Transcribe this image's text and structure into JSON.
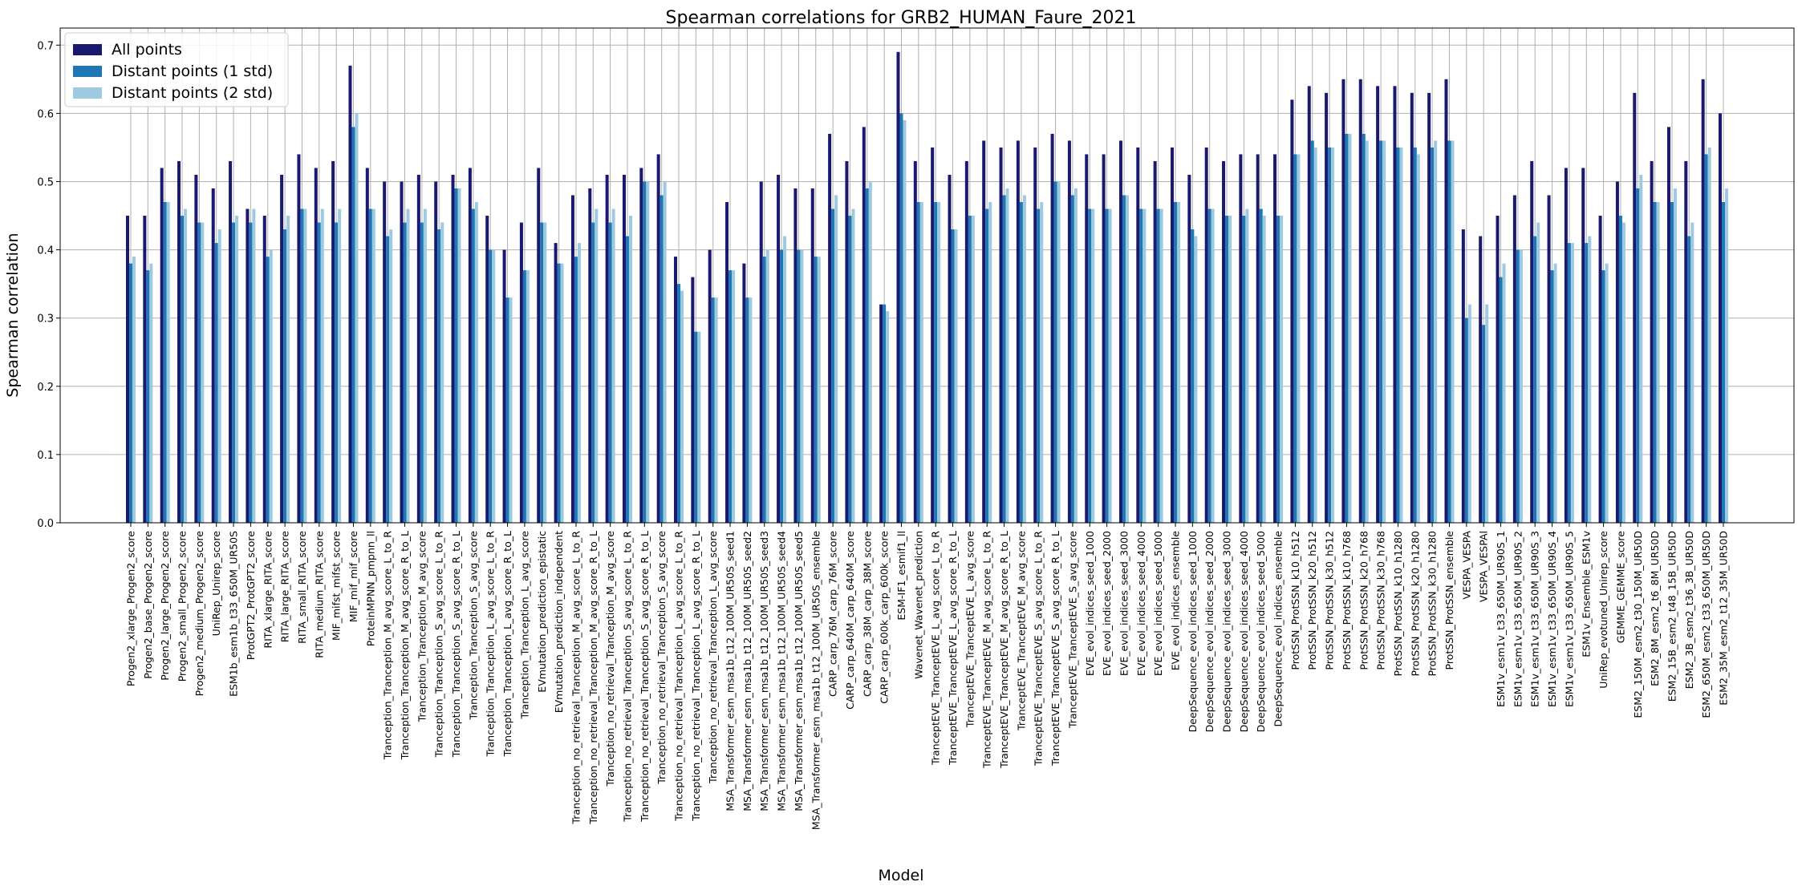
{
  "chart_data": {
    "type": "bar",
    "title": "Spearman correlations for GRB2_HUMAN_Faure_2021",
    "xlabel": "Model",
    "ylabel": "Spearman correlation",
    "ylim": [
      0,
      0.725
    ],
    "yticks": [
      "0.0",
      "0.1",
      "0.2",
      "0.3",
      "0.4",
      "0.5",
      "0.6",
      "0.7"
    ],
    "grid": true,
    "legend_position": "top-left",
    "categories": [
      "Progen2_xlarge_Progen2_score",
      "Progen2_base_Progen2_score",
      "Progen2_large_Progen2_score",
      "Progen2_small_Progen2_score",
      "Progen2_medium_Progen2_score",
      "UniRep_Unirep_score",
      "ESM1b_esm1b_t33_650M_UR50S",
      "ProtGPT2_ProtGPT2_score",
      "RITA_xlarge_RITA_score",
      "RITA_large_RITA_score",
      "RITA_small_RITA_score",
      "RITA_medium_RITA_score",
      "MIF_mifst_mifst_score",
      "MIF_mif_mif_score",
      "ProteinMPNN_pmpnn_ll",
      "Tranception_Tranception_M_avg_score_L_to_R",
      "Tranception_Tranception_M_avg_score_R_to_L",
      "Tranception_Tranception_M_avg_score",
      "Tranception_Tranception_S_avg_score_L_to_R",
      "Tranception_Tranception_S_avg_score_R_to_L",
      "Tranception_Tranception_S_avg_score",
      "Tranception_Tranception_L_avg_score_L_to_R",
      "Tranception_Tranception_L_avg_score_R_to_L",
      "Tranception_Tranception_L_avg_score",
      "EVmutation_prediction_epistatic",
      "EVmutation_prediction_independent",
      "Tranception_no_retrieval_Tranception_M_avg_score_L_to_R",
      "Tranception_no_retrieval_Tranception_M_avg_score_R_to_L",
      "Tranception_no_retrieval_Tranception_M_avg_score",
      "Tranception_no_retrieval_Tranception_S_avg_score_L_to_R",
      "Tranception_no_retrieval_Tranception_S_avg_score_R_to_L",
      "Tranception_no_retrieval_Tranception_S_avg_score",
      "Tranception_no_retrieval_Tranception_L_avg_score_L_to_R",
      "Tranception_no_retrieval_Tranception_L_avg_score_R_to_L",
      "Tranception_no_retrieval_Tranception_L_avg_score",
      "MSA_Transformer_esm_msa1b_t12_100M_UR50S_seed1",
      "MSA_Transformer_esm_msa1b_t12_100M_UR50S_seed2",
      "MSA_Transformer_esm_msa1b_t12_100M_UR50S_seed3",
      "MSA_Transformer_esm_msa1b_t12_100M_UR50S_seed4",
      "MSA_Transformer_esm_msa1b_t12_100M_UR50S_seed5",
      "MSA_Transformer_esm_msa1b_t12_100M_UR50S_ensemble",
      "CARP_carp_76M_carp_76M_score",
      "CARP_carp_640M_carp_640M_score",
      "CARP_carp_38M_carp_38M_score",
      "CARP_carp_600k_carp_600k_score",
      "ESM-IF1_esmif1_ll",
      "Wavenet_Wavenet_prediction",
      "TranceptEVE_TranceptEVE_L_avg_score_L_to_R",
      "TranceptEVE_TranceptEVE_L_avg_score_R_to_L",
      "TranceptEVE_TranceptEVE_L_avg_score",
      "TranceptEVE_TranceptEVE_M_avg_score_L_to_R",
      "TranceptEVE_TranceptEVE_M_avg_score_R_to_L",
      "TranceptEVE_TranceptEVE_M_avg_score",
      "TranceptEVE_TranceptEVE_S_avg_score_L_to_R",
      "TranceptEVE_TranceptEVE_S_avg_score_R_to_L",
      "TranceptEVE_TranceptEVE_S_avg_score",
      "EVE_evol_indices_seed_1000",
      "EVE_evol_indices_seed_2000",
      "EVE_evol_indices_seed_3000",
      "EVE_evol_indices_seed_4000",
      "EVE_evol_indices_seed_5000",
      "EVE_evol_indices_ensemble",
      "DeepSequence_evol_indices_seed_1000",
      "DeepSequence_evol_indices_seed_2000",
      "DeepSequence_evol_indices_seed_3000",
      "DeepSequence_evol_indices_seed_4000",
      "DeepSequence_evol_indices_seed_5000",
      "DeepSequence_evol_indices_ensemble",
      "ProtSSN_ProtSSN_k10_h512",
      "ProtSSN_ProtSSN_k20_h512",
      "ProtSSN_ProtSSN_k30_h512",
      "ProtSSN_ProtSSN_k10_h768",
      "ProtSSN_ProtSSN_k20_h768",
      "ProtSSN_ProtSSN_k30_h768",
      "ProtSSN_ProtSSN_k10_h1280",
      "ProtSSN_ProtSSN_k20_h1280",
      "ProtSSN_ProtSSN_k30_h1280",
      "ProtSSN_ProtSSN_ensemble",
      "VESPA_VESPA",
      "VESPA_VESPAl",
      "ESM1v_esm1v_t33_650M_UR90S_1",
      "ESM1v_esm1v_t33_650M_UR90S_2",
      "ESM1v_esm1v_t33_650M_UR90S_3",
      "ESM1v_esm1v_t33_650M_UR90S_4",
      "ESM1v_esm1v_t33_650M_UR90S_5",
      "ESM1v_Ensemble_ESM1v",
      "UniRep_evotuned_Unirep_score",
      "GEMME_GEMME_score",
      "ESM2_150M_esm2_t30_150M_UR50D",
      "ESM2_8M_esm2_t6_8M_UR50D",
      "ESM2_15B_esm2_t48_15B_UR50D",
      "ESM2_3B_esm2_t36_3B_UR50D",
      "ESM2_650M_esm2_t33_650M_UR50D",
      "ESM2_35M_esm2_t12_35M_UR50D"
    ],
    "series": [
      {
        "name": "All points",
        "color": "#191970",
        "values": [
          0.45,
          0.45,
          0.52,
          0.53,
          0.51,
          0.49,
          0.53,
          0.46,
          0.45,
          0.51,
          0.54,
          0.52,
          0.53,
          0.67,
          0.52,
          0.5,
          0.5,
          0.51,
          0.5,
          0.51,
          0.52,
          0.45,
          0.4,
          0.44,
          0.52,
          0.41,
          0.48,
          0.49,
          0.51,
          0.51,
          0.52,
          0.54,
          0.39,
          0.36,
          0.4,
          0.47,
          0.38,
          0.5,
          0.51,
          0.49,
          0.49,
          0.57,
          0.53,
          0.58,
          0.32,
          0.69,
          0.53,
          0.55,
          0.51,
          0.53,
          0.56,
          0.55,
          0.56,
          0.55,
          0.57,
          0.56,
          0.54,
          0.54,
          0.56,
          0.55,
          0.53,
          0.55,
          0.51,
          0.55,
          0.53,
          0.54,
          0.54,
          0.54,
          0.62,
          0.64,
          0.63,
          0.65,
          0.65,
          0.64,
          0.64,
          0.63,
          0.63,
          0.65,
          0.43,
          0.42,
          0.45,
          0.48,
          0.53,
          0.48,
          0.52,
          0.52,
          0.45,
          0.5,
          0.63,
          0.53,
          0.58,
          0.53,
          0.65,
          0.6
        ]
      },
      {
        "name": "Distant points (1 std)",
        "color": "#1f77b4",
        "values": [
          0.38,
          0.37,
          0.47,
          0.45,
          0.44,
          0.41,
          0.44,
          0.44,
          0.39,
          0.43,
          0.46,
          0.44,
          0.44,
          0.58,
          0.46,
          0.42,
          0.44,
          0.44,
          0.43,
          0.49,
          0.46,
          0.4,
          0.33,
          0.37,
          0.44,
          0.38,
          0.39,
          0.44,
          0.44,
          0.42,
          0.5,
          0.48,
          0.35,
          0.28,
          0.33,
          0.37,
          0.33,
          0.39,
          0.4,
          0.4,
          0.39,
          0.46,
          0.45,
          0.49,
          0.32,
          0.6,
          0.47,
          0.47,
          0.43,
          0.45,
          0.46,
          0.48,
          0.47,
          0.46,
          0.5,
          0.48,
          0.46,
          0.46,
          0.48,
          0.46,
          0.46,
          0.47,
          0.43,
          0.46,
          0.45,
          0.45,
          0.46,
          0.45,
          0.54,
          0.56,
          0.55,
          0.57,
          0.57,
          0.56,
          0.55,
          0.55,
          0.55,
          0.56,
          0.3,
          0.29,
          0.36,
          0.4,
          0.42,
          0.37,
          0.41,
          0.41,
          0.37,
          0.45,
          0.49,
          0.47,
          0.47,
          0.42,
          0.54,
          0.47
        ]
      },
      {
        "name": "Distant points (2 std)",
        "color": "#9ecae1",
        "values": [
          0.39,
          0.38,
          0.47,
          0.46,
          0.44,
          0.43,
          0.45,
          0.46,
          0.4,
          0.45,
          0.46,
          0.46,
          0.46,
          0.6,
          0.46,
          0.43,
          0.46,
          0.46,
          0.44,
          0.49,
          0.47,
          0.4,
          0.33,
          0.37,
          0.44,
          0.38,
          0.41,
          0.46,
          0.46,
          0.45,
          0.5,
          0.5,
          0.34,
          0.28,
          0.33,
          0.37,
          0.33,
          0.4,
          0.42,
          0.4,
          0.39,
          0.48,
          0.46,
          0.5,
          0.31,
          0.59,
          0.47,
          0.47,
          0.43,
          0.45,
          0.47,
          0.49,
          0.48,
          0.47,
          0.5,
          0.49,
          0.46,
          0.46,
          0.48,
          0.46,
          0.46,
          0.47,
          0.42,
          0.46,
          0.45,
          0.46,
          0.45,
          0.45,
          0.54,
          0.55,
          0.55,
          0.57,
          0.56,
          0.56,
          0.55,
          0.54,
          0.56,
          0.56,
          0.32,
          0.32,
          0.38,
          0.4,
          0.44,
          0.38,
          0.41,
          0.42,
          0.38,
          0.44,
          0.51,
          0.47,
          0.49,
          0.44,
          0.55,
          0.49
        ]
      }
    ]
  }
}
